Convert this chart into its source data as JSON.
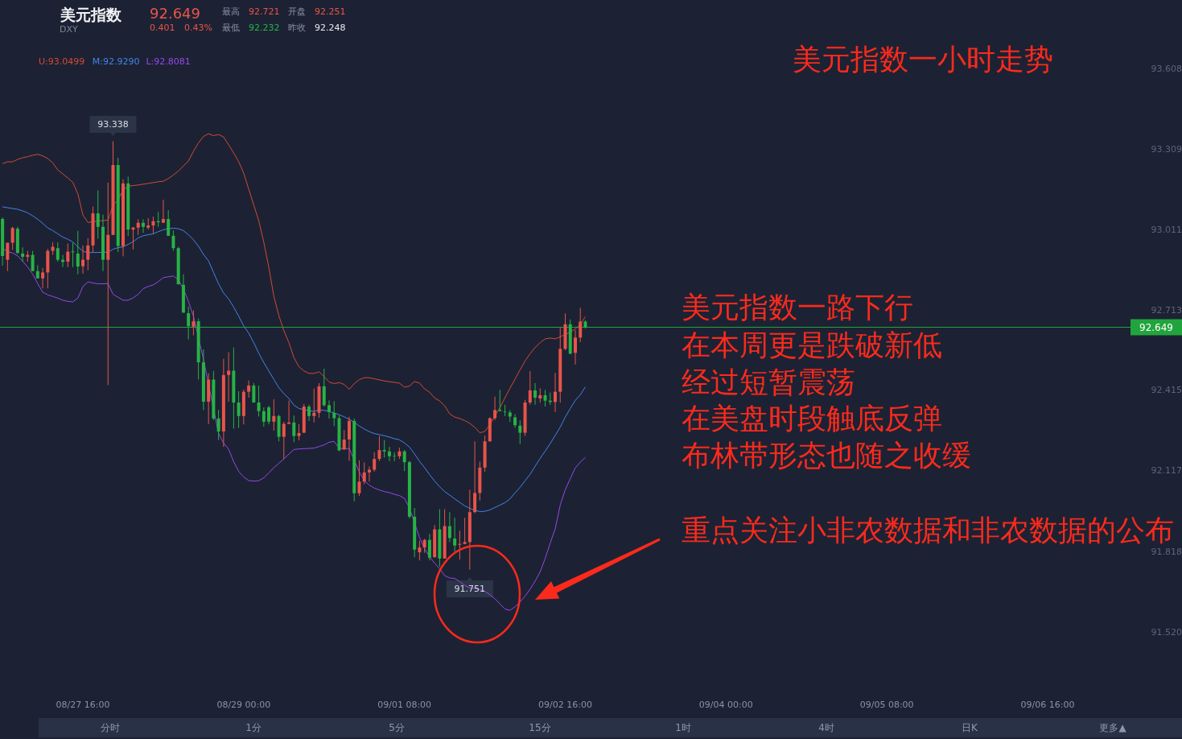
{
  "chart_data": {
    "type": "candlestick",
    "title": "美元指数一小时走势",
    "categories": [
      null,
      null,
      null,
      null,
      null,
      null,
      null,
      null,
      null,
      null,
      null,
      null,
      null,
      null,
      null,
      null,
      "08/27 16:00",
      null,
      null,
      null,
      null,
      null,
      null,
      null,
      null,
      null,
      null,
      null,
      null,
      null,
      null,
      null,
      null,
      null,
      null,
      null,
      null,
      null,
      null,
      null,
      null,
      null,
      null,
      null,
      null,
      null,
      null,
      null,
      "08/29 00:00",
      null,
      null,
      null,
      null,
      null,
      null,
      null,
      null,
      null,
      null,
      null,
      null,
      null,
      null,
      null,
      null,
      null,
      null,
      null,
      null,
      null,
      null,
      null,
      null,
      null,
      null,
      null,
      null,
      null,
      null,
      null,
      "09/01 08:00",
      null,
      null,
      null,
      null,
      null,
      null,
      null,
      null,
      null,
      null,
      null,
      null,
      null,
      null,
      null,
      null,
      null,
      null,
      null,
      null,
      null,
      null,
      null,
      null,
      null,
      null,
      null,
      null,
      null,
      null,
      null,
      "09/02 16:00",
      null,
      null,
      null,
      null,
      null,
      null,
      null,
      null,
      null,
      null,
      null,
      null,
      null,
      null,
      null,
      null,
      null,
      null,
      null,
      null,
      null,
      null,
      null,
      null,
      null,
      null,
      null,
      null,
      null,
      null,
      null,
      "09/04 00:00",
      null,
      null,
      null,
      null,
      null,
      null,
      null,
      null,
      null,
      null,
      null,
      null,
      null,
      null,
      null,
      null,
      null,
      null,
      null,
      null,
      null,
      null,
      null,
      null,
      null,
      null,
      null,
      null,
      null,
      null,
      null,
      "09/05 08:00",
      null,
      null,
      null,
      null,
      null,
      null,
      null,
      null,
      null,
      null,
      null,
      null,
      null,
      null,
      null,
      null,
      null,
      null,
      null,
      null,
      null,
      null,
      null,
      null,
      null,
      null,
      null,
      null,
      null,
      null,
      null,
      "09/06 16:00",
      null,
      null,
      null,
      null,
      null,
      null,
      null,
      null,
      null,
      null,
      null,
      null,
      null,
      null,
      null,
      null
    ],
    "ohlc": [
      [
        93.05,
        93.056,
        92.877,
        92.913
      ],
      [
        92.899,
        92.962,
        92.857,
        92.962
      ],
      [
        92.962,
        93.021,
        92.935,
        93.017
      ],
      [
        93.014,
        93.021,
        92.922,
        92.924
      ],
      [
        92.922,
        92.945,
        92.892,
        92.91
      ],
      [
        92.91,
        92.932,
        92.892,
        92.917
      ],
      [
        92.917,
        92.932,
        92.857,
        92.857
      ],
      [
        92.857,
        92.879,
        92.83,
        92.83
      ],
      [
        92.83,
        92.869,
        92.793,
        92.852
      ],
      [
        92.852,
        92.939,
        92.793,
        92.932
      ],
      [
        92.932,
        92.964,
        92.917,
        92.947
      ],
      [
        92.942,
        92.964,
        92.892,
        92.899
      ],
      [
        92.899,
        92.917,
        92.872,
        92.891
      ],
      [
        92.892,
        92.959,
        92.872,
        92.929
      ],
      [
        92.93,
        92.962,
        92.872,
        92.927
      ],
      [
        92.922,
        93.006,
        92.845,
        92.874
      ],
      [
        92.875,
        92.952,
        92.847,
        92.899
      ],
      [
        92.899,
        92.979,
        92.86,
        92.952
      ],
      [
        92.952,
        93.096,
        92.927,
        93.071
      ],
      [
        93.071,
        93.156,
        92.977,
        93.021
      ],
      [
        93.021,
        93.066,
        92.857,
        92.899
      ],
      [
        92.899,
        93.185,
        92.435,
        92.991
      ],
      [
        92.991,
        93.338,
        92.991,
        93.25
      ],
      [
        93.25,
        93.277,
        92.927,
        92.95
      ],
      [
        92.95,
        93.197,
        92.912,
        93.182
      ],
      [
        93.182,
        93.207,
        92.987,
        93.011
      ],
      [
        93.011,
        93.021,
        92.937,
        93.018
      ],
      [
        93.018,
        93.049,
        92.991,
        93.036
      ],
      [
        93.036,
        93.049,
        92.999,
        93.021
      ],
      [
        93.018,
        93.053,
        93.011,
        93.026
      ],
      [
        93.026,
        93.059,
        92.996,
        93.042
      ],
      [
        93.042,
        93.076,
        93.021,
        93.038
      ],
      [
        93.036,
        93.121,
        93.036,
        93.05
      ],
      [
        93.05,
        93.083,
        92.987,
        92.988
      ],
      [
        92.988,
        93.008,
        92.932,
        92.942
      ],
      [
        92.942,
        92.947,
        92.808,
        92.808
      ],
      [
        92.806,
        92.845,
        92.703,
        92.703
      ],
      [
        92.701,
        92.726,
        92.604,
        92.653
      ],
      [
        92.651,
        92.711,
        92.619,
        92.671
      ],
      [
        92.671,
        92.681,
        92.455,
        92.519
      ],
      [
        92.519,
        92.567,
        92.342,
        92.373
      ],
      [
        92.373,
        92.478,
        92.29,
        92.455
      ],
      [
        92.455,
        92.487,
        92.305,
        92.311
      ],
      [
        92.311,
        92.343,
        92.231,
        92.263
      ],
      [
        92.263,
        92.532,
        92.206,
        92.472
      ],
      [
        92.472,
        92.556,
        92.373,
        92.488
      ],
      [
        92.488,
        92.574,
        92.273,
        92.37
      ],
      [
        92.37,
        92.412,
        92.276,
        92.32
      ],
      [
        92.32,
        92.418,
        92.289,
        92.41
      ],
      [
        92.41,
        92.452,
        92.388,
        92.433
      ],
      [
        92.433,
        92.442,
        92.37,
        92.37
      ],
      [
        92.37,
        92.433,
        92.318,
        92.338
      ],
      [
        92.338,
        92.352,
        92.281,
        92.299
      ],
      [
        92.352,
        92.358,
        92.289,
        92.299
      ],
      [
        92.299,
        92.382,
        92.266,
        92.32
      ],
      [
        92.32,
        92.325,
        92.226,
        92.243
      ],
      [
        92.243,
        92.299,
        92.161,
        92.291
      ],
      [
        92.291,
        92.377,
        92.291,
        92.296
      ],
      [
        92.296,
        92.322,
        92.223,
        92.246
      ],
      [
        92.246,
        92.29,
        92.23,
        92.257
      ],
      [
        92.258,
        92.365,
        92.258,
        92.355
      ],
      [
        92.355,
        92.362,
        92.302,
        92.32
      ],
      [
        92.32,
        92.422,
        92.296,
        92.332
      ],
      [
        92.332,
        92.442,
        92.314,
        92.43
      ],
      [
        92.43,
        92.495,
        92.355,
        92.36
      ],
      [
        92.36,
        92.378,
        92.311,
        92.335
      ],
      [
        92.332,
        92.375,
        92.283,
        92.312
      ],
      [
        92.312,
        92.322,
        92.189,
        92.193
      ],
      [
        92.196,
        92.268,
        92.196,
        92.233
      ],
      [
        92.233,
        92.317,
        92.154,
        92.302
      ],
      [
        92.302,
        92.311,
        92.004,
        92.034
      ],
      [
        92.034,
        92.156,
        92.024,
        92.077
      ],
      [
        92.077,
        92.148,
        92.067,
        92.111
      ],
      [
        92.111,
        92.133,
        92.077,
        92.121
      ],
      [
        92.121,
        92.186,
        92.114,
        92.161
      ],
      [
        92.161,
        92.246,
        92.153,
        92.194
      ],
      [
        92.194,
        92.231,
        92.166,
        92.189
      ],
      [
        92.189,
        92.206,
        92.153,
        92.171
      ],
      [
        92.173,
        92.186,
        92.153,
        92.171
      ],
      [
        92.171,
        92.203,
        92.161,
        92.189
      ],
      [
        92.189,
        92.194,
        92.116,
        92.149
      ],
      [
        92.149,
        92.154,
        91.94,
        91.947
      ],
      [
        91.947,
        91.979,
        91.797,
        91.825
      ],
      [
        91.815,
        91.858,
        91.785,
        91.833
      ],
      [
        91.833,
        91.865,
        91.813,
        91.861
      ],
      [
        91.861,
        91.883,
        91.785,
        91.795
      ],
      [
        91.797,
        91.916,
        91.795,
        91.9
      ],
      [
        91.9,
        91.975,
        91.762,
        91.792
      ],
      [
        91.792,
        91.975,
        91.792,
        91.912
      ],
      [
        91.912,
        91.964,
        91.853,
        91.868
      ],
      [
        91.866,
        91.943,
        91.818,
        91.84
      ],
      [
        91.843,
        91.895,
        91.788,
        91.846
      ],
      [
        91.846,
        91.943,
        91.846,
        91.853
      ],
      [
        91.853,
        92.047,
        91.751,
        91.964
      ],
      [
        91.964,
        92.226,
        91.96,
        92.035
      ],
      [
        92.035,
        92.151,
        92.007,
        92.129
      ],
      [
        92.129,
        92.248,
        92.114,
        92.226
      ],
      [
        92.226,
        92.315,
        92.226,
        92.312
      ],
      [
        92.312,
        92.392,
        92.305,
        92.342
      ],
      [
        92.342,
        92.417,
        92.338,
        92.338
      ],
      [
        92.337,
        92.362,
        92.32,
        92.335
      ],
      [
        92.333,
        92.342,
        92.298,
        92.318
      ],
      [
        92.315,
        92.327,
        92.276,
        92.286
      ],
      [
        92.284,
        92.304,
        92.216,
        92.258
      ],
      [
        92.258,
        92.38,
        92.246,
        92.37
      ],
      [
        92.37,
        92.487,
        92.362,
        92.415
      ],
      [
        92.415,
        92.442,
        92.362,
        92.388
      ],
      [
        92.385,
        92.423,
        92.37,
        92.397
      ],
      [
        92.397,
        92.417,
        92.355,
        92.377
      ],
      [
        92.377,
        92.407,
        92.362,
        92.372
      ],
      [
        92.372,
        92.48,
        92.335,
        92.41
      ],
      [
        92.41,
        92.648,
        92.37,
        92.569
      ],
      [
        92.569,
        92.7,
        92.564,
        92.66
      ],
      [
        92.66,
        92.678,
        92.549,
        92.551
      ],
      [
        92.554,
        92.639,
        92.511,
        92.611
      ],
      [
        92.611,
        92.721,
        92.594,
        92.67
      ],
      [
        92.67,
        92.675,
        92.644,
        92.649
      ],
      null,
      null,
      null,
      null,
      null,
      null,
      null,
      null,
      null,
      null,
      null,
      null,
      null,
      null,
      null,
      null,
      null,
      null,
      null,
      null,
      null,
      null,
      null,
      null,
      null,
      null,
      null,
      null,
      null,
      null,
      null,
      null,
      null,
      null,
      null,
      null,
      null,
      null,
      null,
      null,
      null,
      null,
      null,
      null,
      null,
      null,
      null,
      null,
      null,
      null,
      null,
      null,
      null,
      null,
      null,
      null,
      null,
      null,
      null,
      null,
      null,
      null,
      null,
      null,
      null,
      null,
      null,
      null,
      null,
      null,
      null,
      null,
      null,
      null,
      null,
      null,
      null,
      null,
      null,
      null,
      null,
      null,
      null,
      null,
      null,
      null,
      null,
      null,
      null,
      null,
      null,
      null,
      null,
      null,
      null,
      null,
      null,
      null,
      null,
      null,
      null,
      null,
      null,
      null,
      null,
      null,
      null,
      null
    ],
    "colors": [
      "#27b345",
      "#e9544a",
      "#e9544a",
      "#27b345",
      "#27b345",
      "#e9544a",
      "#27b345",
      "#27b345",
      "#e9544a",
      "#e9544a",
      "#e9544a",
      "#27b345",
      "#27b345",
      "#e9544a",
      "#27b345",
      "#27b345",
      "#e9544a",
      "#e9544a",
      "#e9544a",
      "#27b345",
      "#27b345",
      "#e9544a",
      "#e9544a",
      "#27b345",
      "#e9544a",
      "#27b345",
      "#e9544a",
      "#e9544a",
      "#27b345",
      "#e9544a",
      "#e9544a",
      "#27b345",
      "#e9544a",
      "#27b345",
      "#27b345",
      "#27b345",
      "#27b345",
      "#27b345",
      "#e9544a",
      "#27b345",
      "#27b345",
      "#e9544a",
      "#27b345",
      "#27b345",
      "#e9544a",
      "#e9544a",
      "#27b345",
      "#27b345",
      "#e9544a",
      "#e9544a",
      "#27b345",
      "#27b345",
      "#27b345",
      "#27b345",
      "#e9544a",
      "#27b345",
      "#e9544a",
      "#e9544a",
      "#27b345",
      "#e9544a",
      "#e9544a",
      "#27b345",
      "#e9544a",
      "#e9544a",
      "#27b345",
      "#27b345",
      "#27b345",
      "#27b345",
      "#e9544a",
      "#e9544a",
      "#27b345",
      "#e9544a",
      "#e9544a",
      "#e9544a",
      "#e9544a",
      "#e9544a",
      "#27b345",
      "#27b345",
      "#27b345",
      "#e9544a",
      "#27b345",
      "#27b345",
      "#27b345",
      "#e9544a",
      "#e9544a",
      "#27b345",
      "#e9544a",
      "#27b345",
      "#e9544a",
      "#27b345",
      "#27b345",
      "#e9544a",
      "#e9544a",
      "#e9544a",
      "#e9544a",
      "#e9544a",
      "#e9544a",
      "#e9544a",
      "#e9544a",
      "#27b345",
      "#27b345",
      "#27b345",
      "#27b345",
      "#27b345",
      "#e9544a",
      "#e9544a",
      "#27b345",
      "#e9544a",
      "#27b345",
      "#27b345",
      "#e9544a",
      "#e9544a",
      "#e9544a",
      "#27b345",
      "#e9544a",
      "#e9544a",
      "#27b345",
      null,
      null,
      null,
      null,
      null,
      null,
      null,
      null,
      null,
      null,
      null,
      null,
      null,
      null,
      null,
      null,
      null,
      null,
      null,
      null,
      null,
      null,
      null,
      null,
      null,
      null,
      null,
      null,
      null,
      null,
      null,
      null,
      null,
      null,
      null,
      null,
      null,
      null,
      null,
      null,
      null,
      null,
      null,
      null,
      null,
      null,
      null,
      null,
      null,
      null,
      null,
      null,
      null,
      null,
      null,
      null,
      null,
      null,
      null,
      null,
      null,
      null,
      null,
      null,
      null,
      null,
      null,
      null,
      null,
      null,
      null,
      null,
      null,
      null,
      null,
      null,
      null,
      null,
      null,
      null,
      null,
      null,
      null,
      null,
      null,
      null,
      null,
      null,
      null,
      null,
      null,
      null,
      null,
      null,
      null,
      null,
      null,
      null,
      null,
      null,
      null,
      null,
      null,
      null,
      null,
      null,
      null,
      null
    ],
    "series": [
      {
        "name": "U:93.0499",
        "type": "line",
        "color": "#d24a35",
        "values": [
          93.255,
          93.262,
          93.262,
          93.271,
          93.277,
          93.281,
          93.286,
          93.29,
          93.284,
          93.274,
          93.258,
          93.232,
          93.217,
          93.202,
          93.186,
          93.143,
          93.065,
          93.037,
          93.04,
          93.043,
          93.044,
          93.046,
          93.101,
          93.121,
          93.158,
          93.171,
          93.174,
          93.176,
          93.179,
          93.182,
          93.185,
          93.188,
          93.19,
          93.2,
          93.213,
          93.228,
          93.246,
          93.265,
          93.301,
          93.332,
          93.356,
          93.366,
          93.359,
          93.363,
          93.354,
          93.325,
          93.295,
          93.263,
          93.22,
          93.161,
          93.102,
          93.044,
          92.964,
          92.871,
          92.764,
          92.692,
          92.636,
          92.592,
          92.536,
          92.503,
          92.487,
          92.478,
          92.478,
          92.484,
          92.466,
          92.446,
          92.44,
          92.444,
          92.437,
          92.419,
          92.44,
          92.455,
          92.462,
          92.462,
          92.458,
          92.454,
          92.45,
          92.447,
          92.445,
          92.442,
          92.427,
          92.431,
          92.448,
          92.442,
          92.421,
          92.408,
          92.387,
          92.376,
          92.358,
          92.328,
          92.316,
          92.311,
          92.303,
          92.293,
          92.278,
          92.258,
          92.263,
          92.288,
          92.32,
          92.351,
          92.388,
          92.423,
          92.457,
          92.491,
          92.524,
          92.551,
          92.574,
          92.592,
          92.606,
          92.609,
          92.606,
          92.613,
          92.623,
          92.63,
          92.643,
          92.659,
          92.688,
          null,
          null,
          null,
          null,
          null,
          null,
          null,
          null,
          null,
          null,
          null,
          null,
          null,
          null,
          null,
          null,
          null,
          null,
          null,
          null,
          null,
          null,
          null,
          null,
          null,
          null,
          null,
          null,
          null,
          null,
          null,
          null,
          null,
          null,
          null,
          null,
          null,
          null,
          null,
          null,
          null,
          null,
          null,
          null,
          null,
          null,
          null,
          null,
          null,
          null,
          null,
          null,
          null,
          null,
          null,
          null,
          null,
          null,
          null,
          null,
          null,
          null,
          null,
          null,
          null,
          null,
          null,
          null,
          null,
          null,
          null,
          null,
          null,
          null,
          null,
          null,
          null,
          null,
          null,
          null,
          null,
          null,
          null,
          null,
          null,
          null,
          null,
          null,
          null,
          null,
          null,
          null,
          null,
          null,
          null,
          null,
          null,
          null,
          null,
          null,
          null,
          null,
          null,
          null,
          null,
          null,
          null,
          null
        ]
      },
      {
        "name": "M:92.9290",
        "type": "line",
        "color": "#4384ea",
        "values": [
          93.095,
          93.092,
          93.089,
          93.086,
          93.08,
          93.073,
          93.062,
          93.049,
          93.034,
          93.017,
          93.007,
          92.995,
          92.983,
          92.975,
          92.965,
          92.947,
          92.931,
          92.925,
          92.926,
          92.926,
          92.927,
          92.927,
          92.938,
          92.944,
          92.947,
          92.956,
          92.966,
          92.98,
          92.988,
          92.992,
          92.995,
          93.003,
          93.01,
          93.014,
          93.016,
          93.014,
          93.007,
          92.992,
          92.973,
          92.949,
          92.919,
          92.895,
          92.852,
          92.81,
          92.776,
          92.754,
          92.724,
          92.69,
          92.654,
          92.627,
          92.592,
          92.553,
          92.518,
          92.487,
          92.456,
          92.425,
          92.403,
          92.385,
          92.36,
          92.348,
          92.344,
          92.34,
          92.337,
          92.343,
          92.341,
          92.337,
          92.331,
          92.325,
          92.317,
          92.308,
          92.297,
          92.283,
          92.272,
          92.262,
          92.255,
          92.251,
          92.247,
          92.242,
          92.236,
          92.232,
          92.22,
          92.205,
          92.18,
          92.152,
          92.129,
          92.103,
          92.079,
          92.058,
          92.04,
          92.027,
          92.013,
          92.0,
          91.987,
          91.978,
          91.971,
          91.966,
          91.967,
          91.972,
          91.981,
          91.99,
          91.999,
          92.013,
          92.035,
          92.056,
          92.08,
          92.104,
          92.134,
          92.163,
          92.19,
          92.218,
          92.248,
          92.279,
          92.316,
          92.348,
          92.378,
          92.399,
          92.428,
          null,
          null,
          null,
          null,
          null,
          null,
          null,
          null,
          null,
          null,
          null,
          null,
          null,
          null,
          null,
          null,
          null,
          null,
          null,
          null,
          null,
          null,
          null,
          null,
          null,
          null,
          null,
          null,
          null,
          null,
          null,
          null,
          null,
          null,
          null,
          null,
          null,
          null,
          null,
          null,
          null,
          null,
          null,
          null,
          null,
          null,
          null,
          null,
          null,
          null,
          null,
          null,
          null,
          null,
          null,
          null,
          null,
          null,
          null,
          null,
          null,
          null,
          null,
          null,
          null,
          null,
          null,
          null,
          null,
          null,
          null,
          null,
          null,
          null,
          null,
          null,
          null,
          null,
          null,
          null,
          null,
          null,
          null,
          null,
          null,
          null,
          null,
          null,
          null,
          null,
          null,
          null,
          null,
          null,
          null,
          null,
          null,
          null,
          null,
          null,
          null,
          null,
          null,
          null,
          null,
          null,
          null,
          null
        ]
      },
      {
        "name": "L:92.8081",
        "type": "line",
        "color": "#9448ea",
        "values": [
          92.942,
          92.929,
          92.924,
          92.914,
          92.894,
          92.872,
          92.846,
          92.811,
          92.779,
          92.769,
          92.763,
          92.757,
          92.749,
          92.745,
          92.743,
          92.757,
          92.8,
          92.817,
          92.813,
          92.81,
          92.81,
          92.811,
          92.771,
          92.76,
          92.749,
          92.749,
          92.758,
          92.771,
          92.792,
          92.8,
          92.806,
          92.818,
          92.833,
          92.836,
          92.839,
          92.825,
          92.791,
          92.745,
          92.69,
          null,
          92.53,
          null,
          null,
          92.255,
          92.22,
          92.197,
          92.151,
          92.115,
          92.094,
          92.081,
          92.079,
          92.08,
          92.091,
          92.109,
          92.129,
          92.145,
          92.161,
          92.179,
          92.196,
          92.198,
          92.199,
          92.2,
          92.201,
          92.207,
          92.213,
          92.223,
          92.226,
          92.201,
          92.198,
          92.2,
          null,
          92.113,
          92.081,
          92.064,
          92.053,
          92.046,
          92.04,
          92.036,
          92.03,
          92.025,
          92.015,
          91.979,
          null,
          91.87,
          91.829,
          91.798,
          91.775,
          91.754,
          91.729,
          91.72,
          91.718,
          91.707,
          91.692,
          91.683,
          91.681,
          91.677,
          91.671,
          91.658,
          91.643,
          91.624,
          91.605,
          91.6,
          91.613,
          91.631,
          91.653,
          91.678,
          91.708,
          91.743,
          91.792,
          91.849,
          91.902,
          91.99,
          92.047,
          92.088,
          92.128,
          92.149,
          92.167,
          null,
          null,
          null,
          null,
          null,
          null,
          null,
          null,
          null,
          null,
          null,
          null,
          null,
          null,
          null,
          null,
          null,
          null,
          null,
          null,
          null,
          null,
          null,
          null,
          null,
          null,
          null,
          null,
          null,
          null,
          null,
          null,
          null,
          null,
          null,
          null,
          null,
          null,
          null,
          null,
          null,
          null,
          null,
          null,
          null,
          null,
          null,
          null,
          null,
          null,
          null,
          null,
          null,
          null,
          null,
          null,
          null,
          null,
          null,
          null,
          null,
          null,
          null,
          null,
          null,
          null,
          null,
          null,
          null,
          null,
          null,
          null,
          null,
          null,
          null,
          null,
          null,
          null,
          null,
          null,
          null,
          null,
          null,
          null,
          null,
          null,
          null,
          null,
          null,
          null,
          null,
          null,
          null,
          null,
          null,
          null,
          null,
          null,
          null,
          null,
          null,
          null,
          null,
          null,
          null,
          null,
          null,
          null
        ]
      }
    ],
    "ref_lines": [
      {
        "axis": "y",
        "value": 92.649,
        "label": "92.649",
        "color": "#22a43c"
      }
    ],
    "annotations": [
      {
        "text": "93.338",
        "y": 93.338
      },
      {
        "text": "91.751",
        "y": 91.751
      },
      "美元指数",
      "DXY",
      "92.649",
      "0.401",
      "0.43%",
      "最高",
      "92.721",
      "开盘",
      "92.251",
      "最低",
      "92.232",
      "昨收",
      "92.248",
      "美元指数一路下行",
      "在本周更是跌破新低",
      "经过短暂震荡",
      "在美盘时段触底反弹",
      "布林带形态也随之收缓",
      "重点关注小非农数据和非农数据的公布",
      "分时",
      "1分",
      "5分",
      "15分",
      "1时",
      "4时",
      "日K",
      "更多▲"
    ],
    "ylim": [
      91.52,
      93.608
    ],
    "yticks": [
      93.608,
      93.309,
      93.011,
      92.713,
      92.415,
      92.117,
      91.818,
      {
        "value": 91.52,
        "label": "91.520"
      }
    ],
    "legend": "top left"
  }
}
